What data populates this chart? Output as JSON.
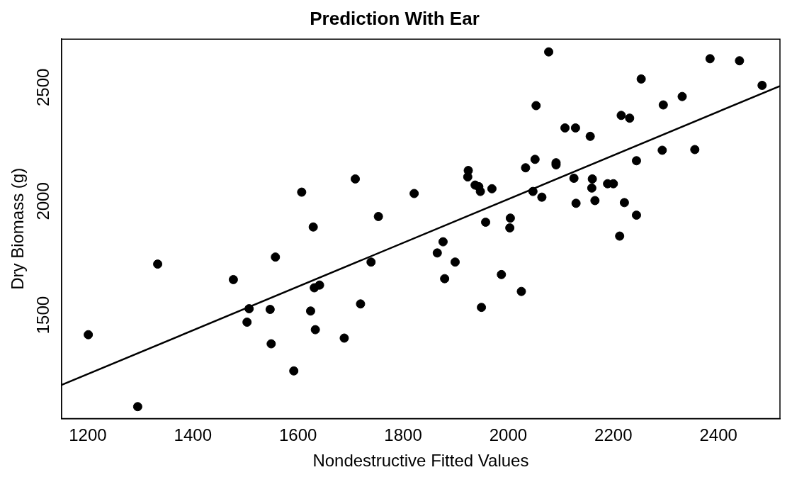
{
  "chart_data": {
    "type": "scatter",
    "title": "Prediction With Ear",
    "xlabel": "Nondestructive Fitted Values",
    "ylabel": "Dry Biomass (g)",
    "xlim": [
      1150,
      2517
    ],
    "ylim": [
      1046,
      2712
    ],
    "xticks": [
      1200,
      1400,
      1600,
      1800,
      2000,
      2200,
      2400
    ],
    "yticks": [
      1500,
      2000,
      2500
    ],
    "grid": false,
    "legend": false,
    "marker": "circle",
    "series": [
      {
        "color": "#000000",
        "x": [
          1201,
          1295,
          1333,
          1477,
          1507,
          1503,
          1547,
          1549,
          1557,
          1592,
          1607,
          1624,
          1629,
          1631,
          1633,
          1641,
          1688,
          1709,
          1719,
          1739,
          1753,
          1821,
          1865,
          1876,
          1879,
          1899,
          1923,
          1924,
          1937,
          1944,
          1947,
          1949,
          1957,
          1969,
          1987,
          2003,
          2004,
          2025,
          2033,
          2047,
          2051,
          2053,
          2064,
          2077,
          2091,
          2091,
          2108,
          2125,
          2128,
          2129,
          2156,
          2159,
          2160,
          2165,
          2189,
          2200,
          2212,
          2215,
          2221,
          2231,
          2244,
          2244,
          2253,
          2293,
          2295,
          2331,
          2355,
          2384,
          2440,
          2483
        ],
        "values": [
          1414,
          1098,
          1724,
          1656,
          1528,
          1469,
          1525,
          1374,
          1755,
          1255,
          2040,
          1518,
          1887,
          1620,
          1436,
          1632,
          1399,
          2098,
          1549,
          1733,
          1933,
          2034,
          1773,
          1822,
          1660,
          1733,
          2107,
          2135,
          2071,
          2064,
          2043,
          1534,
          1908,
          2055,
          1678,
          1883,
          1926,
          1604,
          2147,
          2043,
          2184,
          2420,
          2018,
          2656,
          2169,
          2160,
          2322,
          2101,
          2322,
          1991,
          2285,
          2058,
          2098,
          2003,
          2077,
          2077,
          1847,
          2377,
          1994,
          2365,
          2178,
          1939,
          2537,
          2224,
          2423,
          2460,
          2227,
          2626,
          2617,
          2509
        ]
      },
      {
        "type": "line",
        "marker": "none",
        "color": "#000000",
        "x": [
          1150,
          2517
        ],
        "values": [
          1193,
          2506
        ]
      }
    ]
  }
}
